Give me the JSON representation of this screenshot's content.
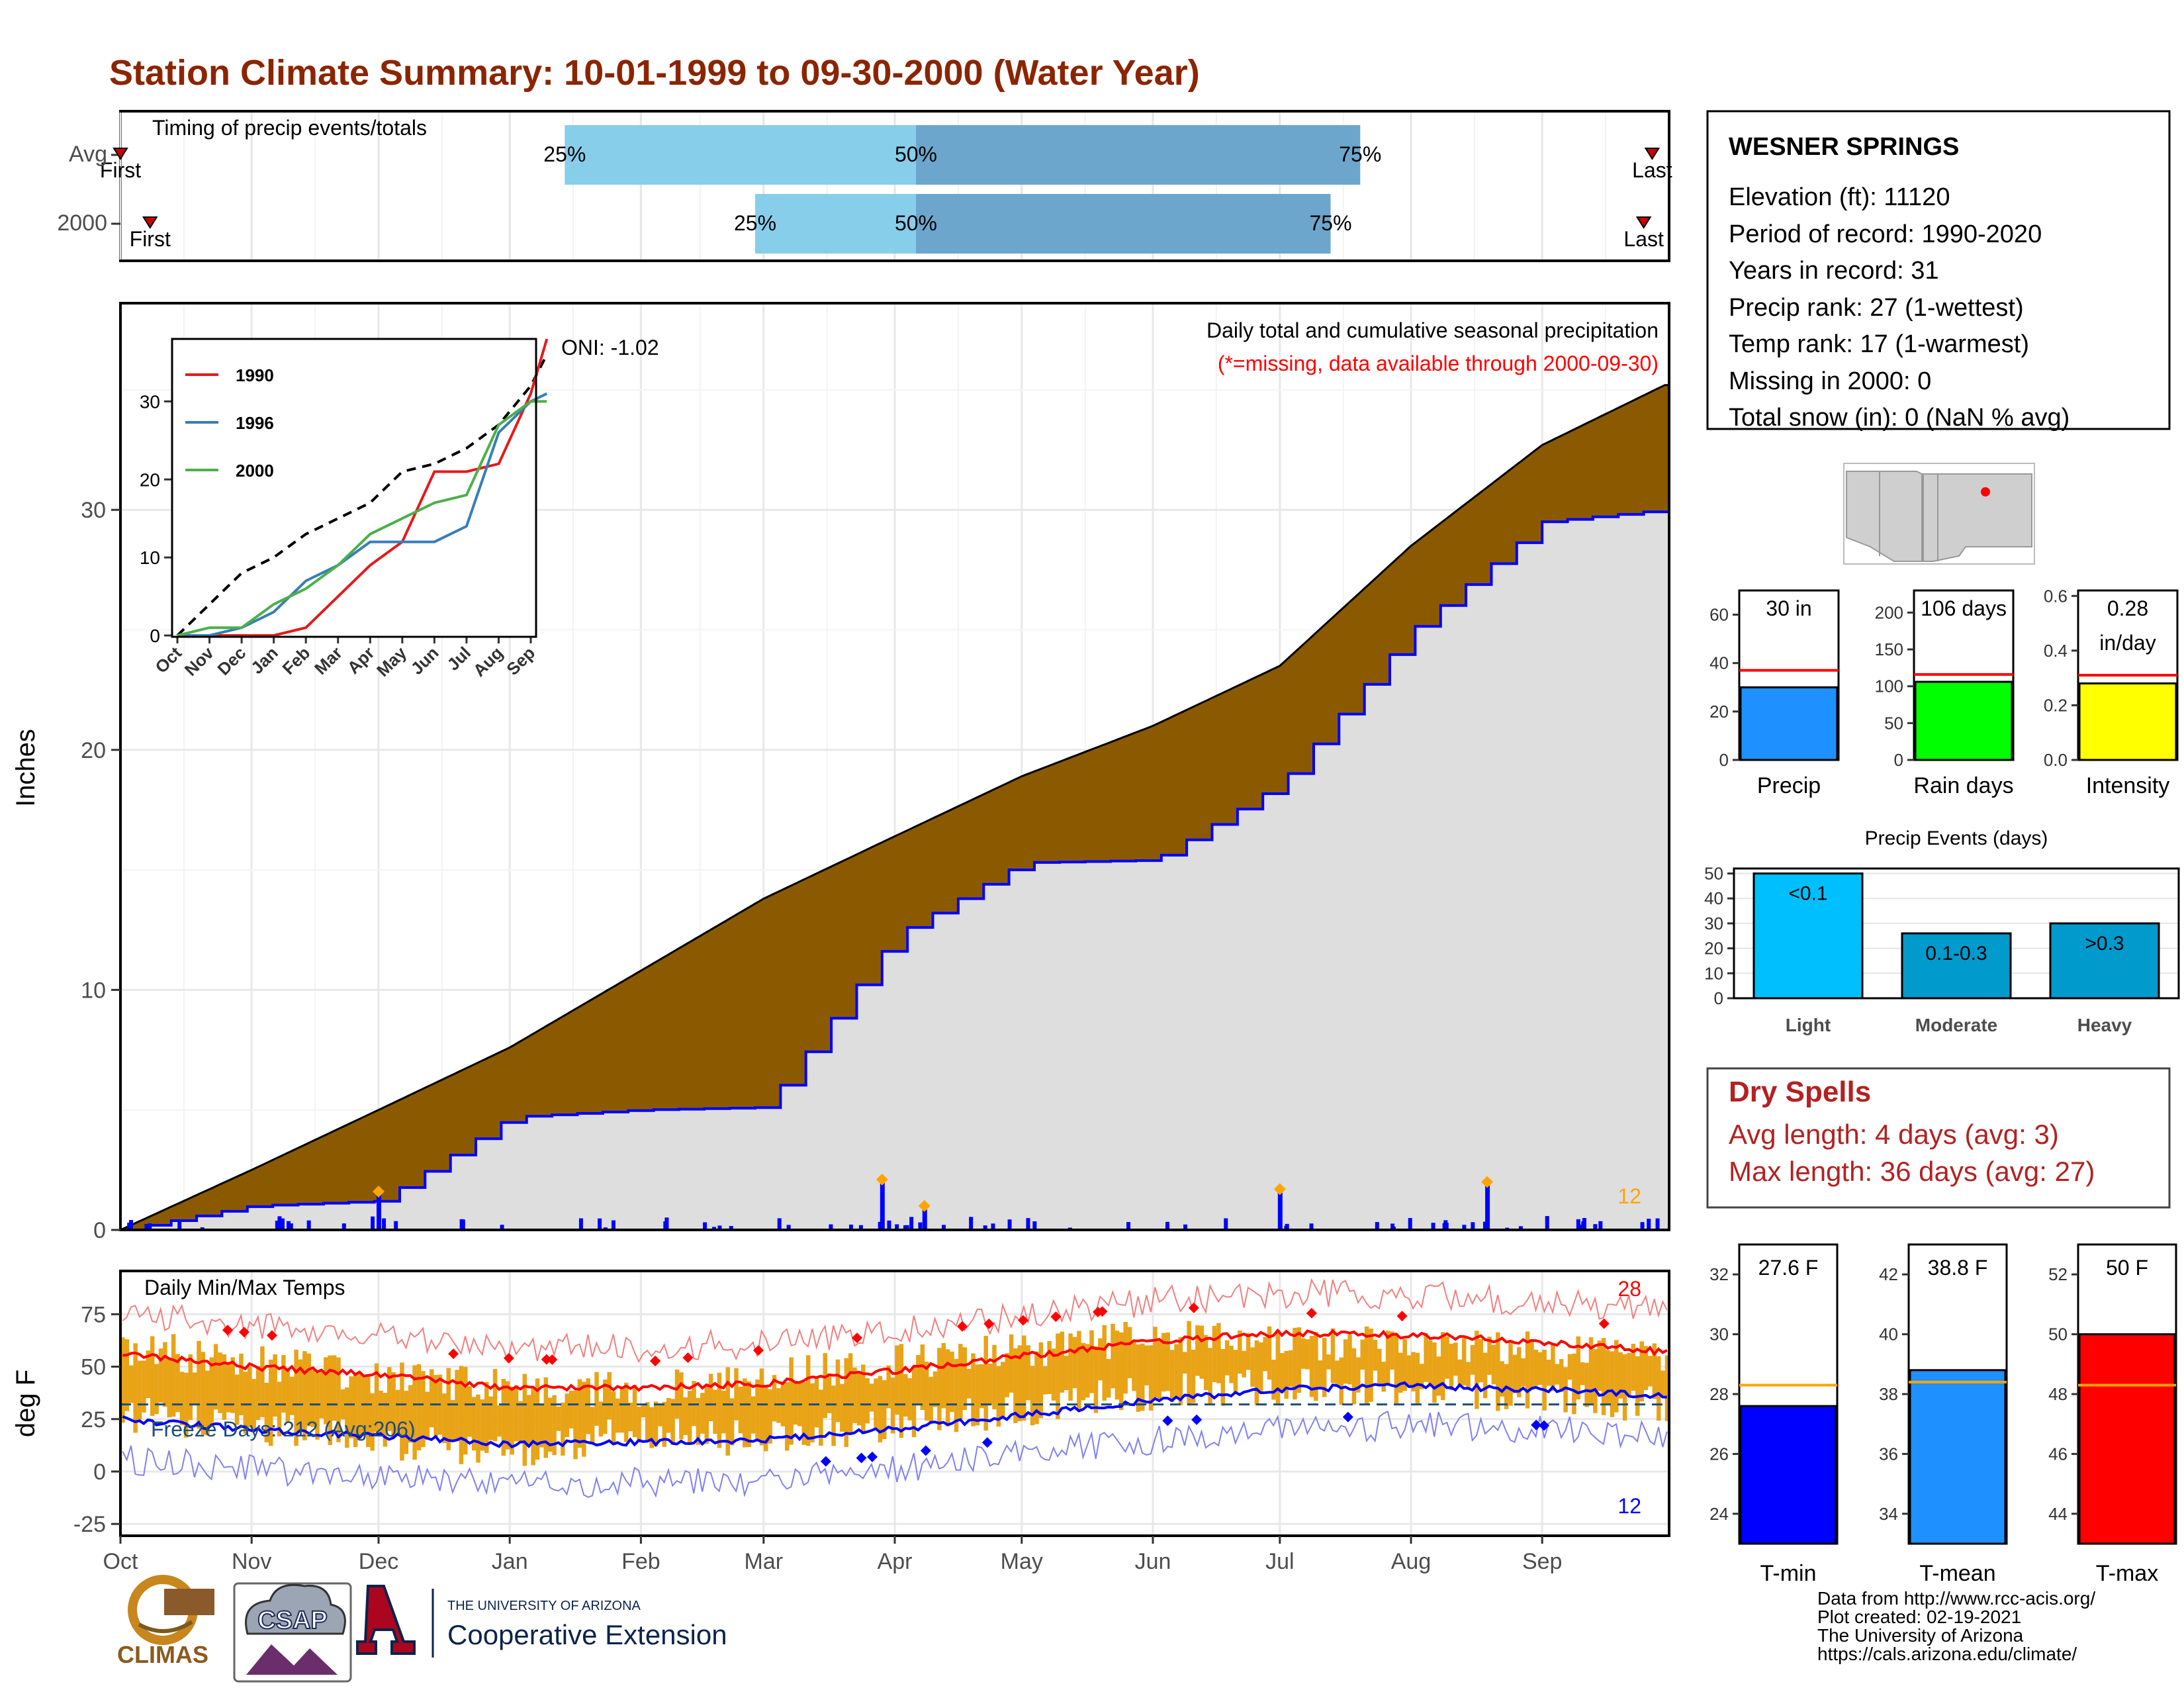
{
  "title": "Station Climate Summary: 10-01-1999 to 09-30-2000 (Water Year)",
  "colors": {
    "title": "#8B2500",
    "brown": "#8B5A00",
    "fill_gray": "#DEDEDF",
    "blue": "#0000FF",
    "orange": "#FFA500",
    "gold": "#E8A317",
    "red": "#FF0000",
    "light_blue": "#87CEEB",
    "mid_blue": "#6CA6CD",
    "dark_red": "#B22222"
  },
  "timing": {
    "title": "Timing of precip events/totals",
    "rows": [
      {
        "label": "Avg",
        "first": "First",
        "last": "Last",
        "p25": "25%",
        "p50": "50%",
        "p75": "75%",
        "d_first": "1999-10-01",
        "d25": "2000-01-14",
        "d50": "2000-04-06",
        "d75": "2000-07-20",
        "d_last": "2000-09-27"
      },
      {
        "label": "2000",
        "first": "First",
        "last": "Last",
        "p25": "25%",
        "p50": "50%",
        "p75": "75%",
        "d_first": "1999-10-08",
        "d25": "2000-02-28",
        "d50": "2000-04-06",
        "d75": "2000-07-13",
        "d_last": "2000-09-25"
      }
    ]
  },
  "station": {
    "name": "WESNER SPRINGS",
    "lines": [
      "Elevation (ft): 11120",
      "Period of record: 1990-2020",
      "Years in record: 31",
      "Precip rank: 27 (1-wettest)",
      "Temp rank: 17 (1-warmest)",
      "Missing in 2000: 0",
      "Total snow (in): 0 (NaN % avg)"
    ]
  },
  "precip_panel": {
    "title": "Daily total and cumulative seasonal precipitation",
    "subtitle": "(*=missing, data available through 2000-09-30)",
    "oni": "ONI: -1.02",
    "ylabel": "Inches",
    "count_label": "12",
    "yticks": [
      "0",
      "10",
      "20",
      "30"
    ]
  },
  "inset": {
    "legend": [
      "1990",
      "1996",
      "2000"
    ],
    "yticks": [
      "0",
      "10",
      "20",
      "30"
    ],
    "xticks": [
      "Oct",
      "Nov",
      "Dec",
      "Jan",
      "Feb",
      "Mar",
      "Apr",
      "May",
      "Jun",
      "Jul",
      "Aug",
      "Sep"
    ]
  },
  "temp_panel": {
    "title": "Daily Min/Max Temps",
    "ylabel": "deg F",
    "freeze": "Freeze Days: 212 (Avg:206)",
    "hot_count": "28",
    "cold_count": "12",
    "yticks": [
      "-25",
      "0",
      "25",
      "50",
      "75"
    ]
  },
  "months": [
    "Oct",
    "Nov",
    "Dec",
    "Jan",
    "Feb",
    "Mar",
    "Apr",
    "May",
    "Jun",
    "Jul",
    "Aug",
    "Sep"
  ],
  "bars3": [
    {
      "label": "Precip",
      "value_text": "30 in",
      "yticks": [
        "0",
        "20",
        "40",
        "60"
      ]
    },
    {
      "label": "Rain days",
      "value_text": "106 days",
      "yticks": [
        "0",
        "50",
        "100",
        "150",
        "200"
      ]
    },
    {
      "label": "Intensity",
      "value_text": "0.28",
      "value_text2": "in/day",
      "yticks": [
        "0.0",
        "0.2",
        "0.4",
        "0.6"
      ]
    }
  ],
  "events": {
    "title": "Precip Events (days)",
    "yticks": [
      "0",
      "10",
      "20",
      "30",
      "40",
      "50"
    ],
    "bars": [
      {
        "label": "Light",
        "text": "<0.1"
      },
      {
        "label": "Moderate",
        "text": "0.1-0.3"
      },
      {
        "label": "Heavy",
        "text": ">0.3"
      }
    ]
  },
  "dry_spells": {
    "title": "Dry Spells",
    "avg": "Avg length: 4 days (avg: 3)",
    "max": "Max length: 36 days (avg: 27)"
  },
  "temp_bars": [
    {
      "label": "T-min",
      "value_text": "27.6 F",
      "yticks": [
        "24",
        "26",
        "28",
        "30",
        "32"
      ]
    },
    {
      "label": "T-mean",
      "value_text": "38.8 F",
      "yticks": [
        "34",
        "36",
        "38",
        "40",
        "42"
      ]
    },
    {
      "label": "T-max",
      "value_text": "50 F",
      "yticks": [
        "44",
        "46",
        "48",
        "50",
        "52"
      ]
    }
  ],
  "footer": [
    "Data from http://www.rcc-acis.org/",
    "Plot created: 02-19-2021",
    "The University of Arizona",
    "https://cals.arizona.edu/climate/"
  ],
  "logos": {
    "climas": "CLIMAS",
    "csap": "CSAP",
    "ua_small": "THE UNIVERSITY OF ARIZONA",
    "coop": "Cooperative Extension"
  },
  "chart_data": [
    {
      "type": "area",
      "title": "Daily total and cumulative seasonal precipitation",
      "ylabel": "Inches",
      "ylim": [
        0,
        38.5
      ],
      "x": [
        "1999-10-01",
        "1999-11-01",
        "1999-12-01",
        "2000-01-01",
        "2000-02-01",
        "2000-03-01",
        "2000-04-01",
        "2000-05-01",
        "2000-06-01",
        "2000-07-01",
        "2000-08-01",
        "2000-09-01",
        "2000-09-30"
      ],
      "series": [
        {
          "name": "Avg",
          "values": [
            0,
            2.5,
            5.0,
            7.6,
            10.8,
            13.8,
            16.4,
            18.9,
            21.0,
            23.5,
            28.5,
            32.7,
            35.2
          ]
        },
        {
          "name": "2000",
          "values": [
            0,
            1.0,
            1.2,
            4.7,
            5.0,
            5.1,
            12.3,
            15.3,
            15.4,
            18.6,
            25.0,
            29.5,
            30.0
          ]
        }
      ],
      "daily_max_events": [
        {
          "date": "1999-12-01",
          "value": 1.6
        },
        {
          "date": "2000-03-29",
          "value": 2.1
        },
        {
          "date": "2000-04-08",
          "value": 1.0
        },
        {
          "date": "2000-07-01",
          "value": 1.7
        },
        {
          "date": "2000-08-19",
          "value": 2.0
        }
      ]
    },
    {
      "type": "line",
      "title": "Daily Min/Max Temps",
      "ylabel": "deg F",
      "ylim": [
        -30,
        95
      ],
      "x": [
        "1999-10-01",
        "1999-11-01",
        "1999-12-01",
        "2000-01-01",
        "2000-02-01",
        "2000-03-01",
        "2000-04-01",
        "2000-05-01",
        "2000-06-01",
        "2000-07-01",
        "2000-08-01",
        "2000-09-01",
        "2000-09-30"
      ],
      "series": [
        {
          "name": "avg max",
          "values": [
            56,
            50,
            46,
            40,
            40,
            42,
            48,
            55,
            62,
            66,
            65,
            62,
            57
          ]
        },
        {
          "name": "avg min",
          "values": [
            25,
            20,
            17,
            13,
            14,
            15,
            20,
            27,
            34,
            39,
            41,
            39,
            36
          ]
        },
        {
          "name": "obs max",
          "values": [
            60,
            52,
            45,
            40,
            38,
            44,
            52,
            58,
            65,
            62,
            60,
            58,
            55
          ]
        },
        {
          "name": "obs min",
          "values": [
            28,
            22,
            15,
            10,
            18,
            16,
            22,
            30,
            38,
            40,
            40,
            36,
            32
          ]
        }
      ]
    },
    {
      "type": "bar",
      "categories": [
        "Precip"
      ],
      "values": [
        30
      ],
      "ylim": [
        0,
        70
      ],
      "reference": 37
    },
    {
      "type": "bar",
      "categories": [
        "Rain days"
      ],
      "values": [
        106
      ],
      "ylim": [
        0,
        230
      ],
      "reference": 116
    },
    {
      "type": "bar",
      "categories": [
        "Intensity"
      ],
      "values": [
        0.28
      ],
      "ylim": [
        0,
        0.62
      ],
      "reference": 0.31
    },
    {
      "type": "bar",
      "title": "Precip Events (days)",
      "categories": [
        "Light",
        "Moderate",
        "Heavy"
      ],
      "values": [
        50,
        26,
        30
      ],
      "ylim": [
        0,
        52
      ]
    },
    {
      "type": "bar",
      "categories": [
        "T-min"
      ],
      "values": [
        27.6
      ],
      "ylim": [
        23,
        33
      ],
      "reference": 28.3
    },
    {
      "type": "bar",
      "categories": [
        "T-mean"
      ],
      "values": [
        38.8
      ],
      "ylim": [
        33,
        43
      ],
      "reference": 38.4
    },
    {
      "type": "bar",
      "categories": [
        "T-max"
      ],
      "values": [
        50
      ],
      "ylim": [
        43,
        53
      ],
      "reference": 48.3
    }
  ]
}
